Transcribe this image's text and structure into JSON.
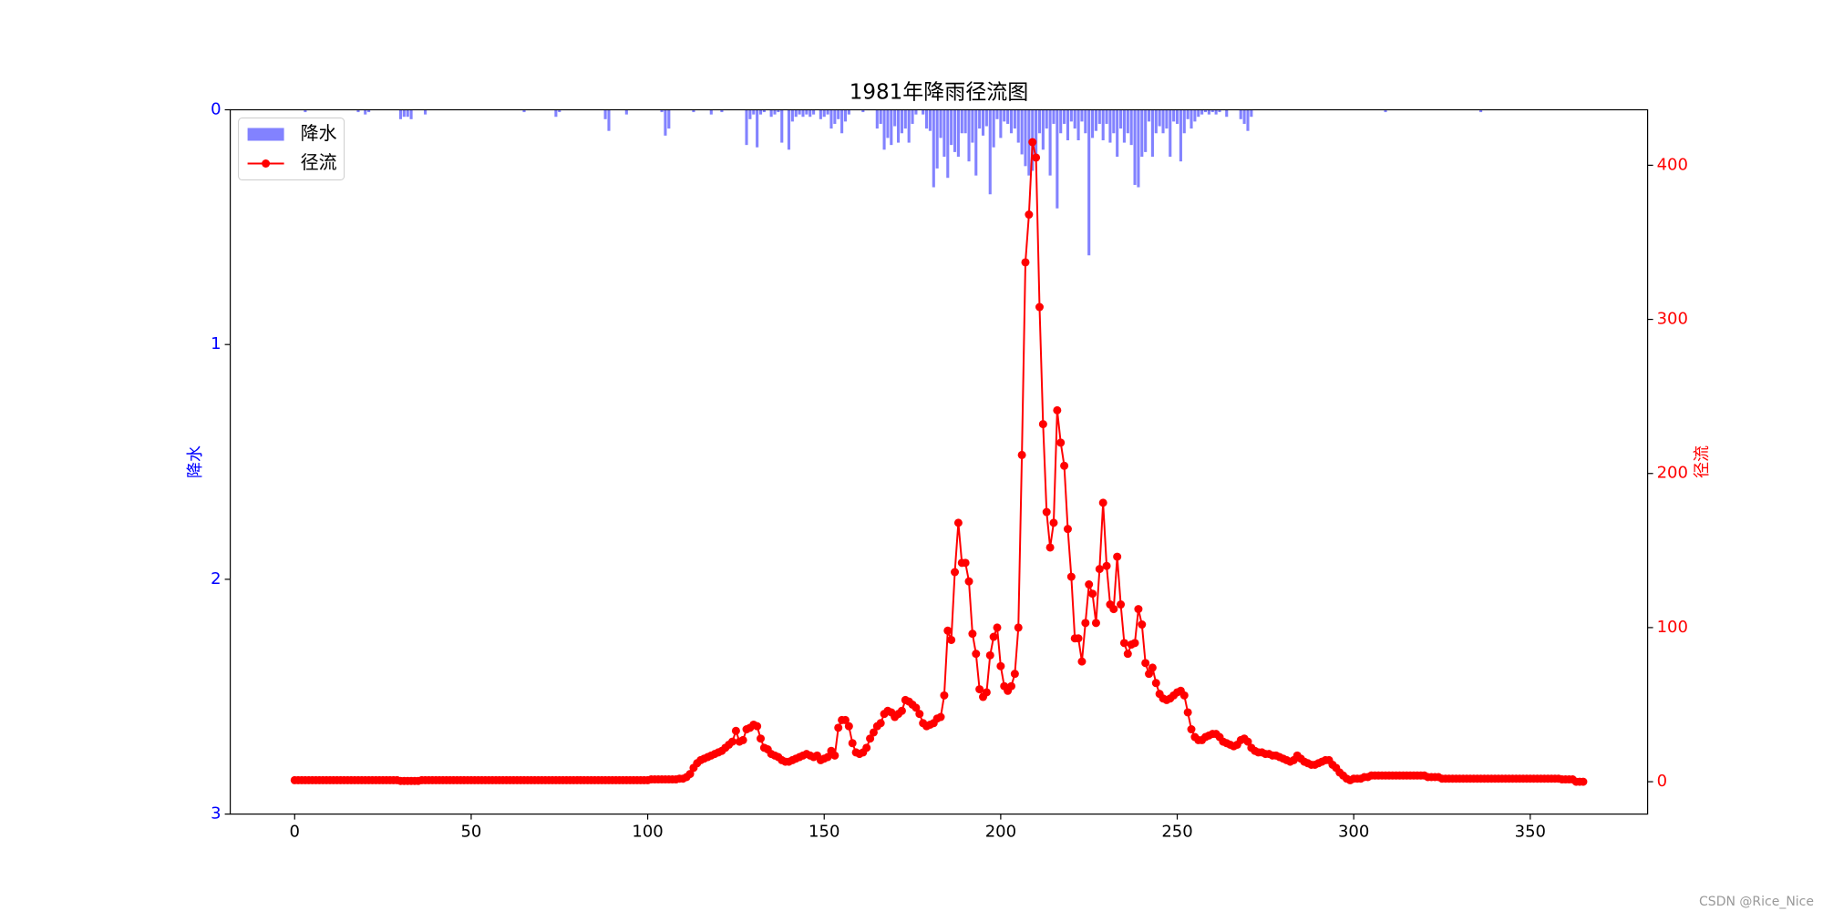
{
  "chart_data": {
    "type": "bar_line",
    "title": "1981年降雨径流图",
    "ylabel": "降水",
    "y2label": "径流",
    "watermark": "CSDN @Rice_Nice",
    "legend": "upper left",
    "xlim": [
      -18.25,
      383.25
    ],
    "xticks": [
      0,
      50,
      100,
      150,
      200,
      250,
      300,
      350
    ],
    "ylim": [
      3,
      0
    ],
    "yticks": [
      0,
      1,
      2,
      3
    ],
    "y2lim": [
      -21,
      436
    ],
    "y2ticks": [
      0,
      100,
      200,
      300,
      400
    ],
    "x": [
      0,
      1,
      2,
      3,
      4,
      5,
      6,
      7,
      8,
      9,
      10,
      11,
      12,
      13,
      14,
      15,
      16,
      17,
      18,
      19,
      20,
      21,
      22,
      23,
      24,
      25,
      26,
      27,
      28,
      29,
      30,
      31,
      32,
      33,
      34,
      35,
      36,
      37,
      38,
      39,
      40,
      41,
      42,
      43,
      44,
      45,
      46,
      47,
      48,
      49,
      50,
      51,
      52,
      53,
      54,
      55,
      56,
      57,
      58,
      59,
      60,
      61,
      62,
      63,
      64,
      65,
      66,
      67,
      68,
      69,
      70,
      71,
      72,
      73,
      74,
      75,
      76,
      77,
      78,
      79,
      80,
      81,
      82,
      83,
      84,
      85,
      86,
      87,
      88,
      89,
      90,
      91,
      92,
      93,
      94,
      95,
      96,
      97,
      98,
      99,
      100,
      101,
      102,
      103,
      104,
      105,
      106,
      107,
      108,
      109,
      110,
      111,
      112,
      113,
      114,
      115,
      116,
      117,
      118,
      119,
      120,
      121,
      122,
      123,
      124,
      125,
      126,
      127,
      128,
      129,
      130,
      131,
      132,
      133,
      134,
      135,
      136,
      137,
      138,
      139,
      140,
      141,
      142,
      143,
      144,
      145,
      146,
      147,
      148,
      149,
      150,
      151,
      152,
      153,
      154,
      155,
      156,
      157,
      158,
      159,
      160,
      161,
      162,
      163,
      164,
      165,
      166,
      167,
      168,
      169,
      170,
      171,
      172,
      173,
      174,
      175,
      176,
      177,
      178,
      179,
      180,
      181,
      182,
      183,
      184,
      185,
      186,
      187,
      188,
      189,
      190,
      191,
      192,
      193,
      194,
      195,
      196,
      197,
      198,
      199,
      200,
      201,
      202,
      203,
      204,
      205,
      206,
      207,
      208,
      209,
      210,
      211,
      212,
      213,
      214,
      215,
      216,
      217,
      218,
      219,
      220,
      221,
      222,
      223,
      224,
      225,
      226,
      227,
      228,
      229,
      230,
      231,
      232,
      233,
      234,
      235,
      236,
      237,
      238,
      239,
      240,
      241,
      242,
      243,
      244,
      245,
      246,
      247,
      248,
      249,
      250,
      251,
      252,
      253,
      254,
      255,
      256,
      257,
      258,
      259,
      260,
      261,
      262,
      263,
      264,
      265,
      266,
      267,
      268,
      269,
      270,
      271,
      272,
      273,
      274,
      275,
      276,
      277,
      278,
      279,
      280,
      281,
      282,
      283,
      284,
      285,
      286,
      287,
      288,
      289,
      290,
      291,
      292,
      293,
      294,
      295,
      296,
      297,
      298,
      299,
      300,
      301,
      302,
      303,
      304,
      305,
      306,
      307,
      308,
      309,
      310,
      311,
      312,
      313,
      314,
      315,
      316,
      317,
      318,
      319,
      320,
      321,
      322,
      323,
      324,
      325,
      326,
      327,
      328,
      329,
      330,
      331,
      332,
      333,
      334,
      335,
      336,
      337,
      338,
      339,
      340,
      341,
      342,
      343,
      344,
      345,
      346,
      347,
      348,
      349,
      350,
      351,
      352,
      353,
      354,
      355,
      356,
      357,
      358,
      359,
      360,
      361,
      362,
      363,
      364,
      365
    ],
    "series": [
      {
        "name": "降水",
        "color": "#4d4dff",
        "axis": "y",
        "values": [
          0,
          0,
          0,
          0.01,
          0,
          0,
          0,
          0,
          0,
          0,
          0,
          0,
          0,
          0,
          0,
          0,
          0,
          0,
          0.01,
          0,
          0.02,
          0.01,
          0,
          0,
          0,
          0,
          0,
          0,
          0,
          0,
          0.04,
          0.03,
          0.03,
          0.04,
          0,
          0,
          0,
          0.02,
          0,
          0,
          0,
          0,
          0,
          0,
          0,
          0,
          0,
          0,
          0,
          0,
          0,
          0,
          0,
          0,
          0,
          0,
          0,
          0,
          0,
          0,
          0,
          0,
          0,
          0,
          0,
          0.01,
          0,
          0,
          0,
          0,
          0,
          0,
          0,
          0,
          0.03,
          0.01,
          0,
          0,
          0,
          0,
          0,
          0,
          0,
          0,
          0,
          0,
          0,
          0,
          0.04,
          0.09,
          0,
          0,
          0,
          0,
          0.02,
          0,
          0,
          0,
          0,
          0,
          0,
          0,
          0,
          0,
          0.01,
          0.11,
          0.08,
          0,
          0,
          0,
          0,
          0,
          0,
          0.01,
          0,
          0,
          0,
          0,
          0.02,
          0,
          0,
          0.01,
          0,
          0,
          0,
          0,
          0,
          0,
          0.15,
          0.04,
          0.02,
          0.16,
          0.02,
          0.01,
          0,
          0.03,
          0.02,
          0.01,
          0.14,
          0,
          0.17,
          0.05,
          0.03,
          0.02,
          0.03,
          0.02,
          0.03,
          0.02,
          0,
          0.04,
          0.03,
          0.02,
          0.08,
          0.06,
          0.04,
          0.1,
          0.05,
          0.02,
          0,
          0,
          0,
          0.01,
          0,
          0,
          0,
          0.08,
          0.06,
          0.17,
          0.12,
          0.15,
          0.07,
          0.14,
          0.1,
          0.08,
          0.14,
          0.06,
          0.02,
          0,
          0.02,
          0.08,
          0.09,
          0.33,
          0.25,
          0.12,
          0.2,
          0.29,
          0.15,
          0.18,
          0.2,
          0.1,
          0.1,
          0.22,
          0.14,
          0.28,
          0.08,
          0.11,
          0.07,
          0.36,
          0.16,
          0.04,
          0.12,
          0.05,
          0.06,
          0.1,
          0.08,
          0.14,
          0.19,
          0.24,
          0.28,
          0.26,
          0.2,
          0.1,
          0.17,
          0.08,
          0.28,
          0.06,
          0.42,
          0.1,
          0.06,
          0.13,
          0.05,
          0.08,
          0.13,
          0.05,
          0.1,
          0.62,
          0.12,
          0.09,
          0.06,
          0.13,
          0.06,
          0.14,
          0.1,
          0.2,
          0.08,
          0.14,
          0.1,
          0.15,
          0.32,
          0.33,
          0.2,
          0.18,
          0.05,
          0.2,
          0.1,
          0.07,
          0.1,
          0.08,
          0.2,
          0.05,
          0.06,
          0.22,
          0.1,
          0.04,
          0.08,
          0.05,
          0.03,
          0.02,
          0.01,
          0.02,
          0.01,
          0.02,
          0.01,
          0,
          0.03,
          0,
          0,
          0,
          0.04,
          0.06,
          0.09,
          0.03,
          0,
          0,
          0,
          0,
          0,
          0,
          0,
          0,
          0,
          0,
          0,
          0,
          0,
          0,
          0,
          0,
          0,
          0,
          0,
          0,
          0,
          0,
          0,
          0,
          0,
          0,
          0,
          0,
          0,
          0,
          0,
          0,
          0,
          0,
          0,
          0,
          0,
          0.01,
          0,
          0,
          0,
          0,
          0,
          0,
          0,
          0,
          0,
          0,
          0,
          0,
          0,
          0,
          0,
          0,
          0,
          0,
          0,
          0,
          0,
          0,
          0,
          0,
          0,
          0,
          0.01,
          0,
          0,
          0,
          0,
          0,
          0,
          0,
          0,
          0,
          0,
          0,
          0,
          0,
          0,
          0,
          0,
          0,
          0,
          0,
          0,
          0,
          0,
          0,
          0,
          0,
          0,
          0,
          0,
          0
        ]
      },
      {
        "name": "径流",
        "color": "#ff0000",
        "axis": "y2",
        "values": [
          1,
          1,
          1,
          1,
          1,
          1,
          1,
          1,
          1,
          1,
          1,
          1,
          1,
          1,
          1,
          1,
          1,
          1,
          1,
          1,
          1,
          1,
          1,
          1,
          1,
          1,
          1,
          1,
          1,
          1,
          0.5,
          0.5,
          0.5,
          0.5,
          0.5,
          0.5,
          1,
          1,
          1,
          1,
          1,
          1,
          1,
          1,
          1,
          1,
          1,
          1,
          1,
          1,
          1,
          1,
          1,
          1,
          1,
          1,
          1,
          1,
          1,
          1,
          1,
          1,
          1,
          1,
          1,
          1,
          1,
          1,
          1,
          1,
          1,
          1,
          1,
          1,
          1,
          1,
          1,
          1,
          1,
          1,
          1,
          1,
          1,
          1,
          1,
          1,
          1,
          1,
          1,
          1,
          1,
          1,
          1,
          1,
          1,
          1,
          1,
          1,
          1,
          1,
          1,
          1.5,
          1.5,
          1.5,
          1.5,
          1.5,
          1.5,
          1.5,
          1.5,
          2,
          2,
          3,
          5,
          9,
          12,
          14,
          15,
          16,
          17,
          18,
          19,
          20,
          22,
          24,
          26,
          33,
          26,
          27,
          34,
          35,
          37,
          36,
          28,
          22,
          21,
          18,
          17,
          16,
          14,
          13,
          13,
          14,
          15,
          16,
          17,
          18,
          17,
          16,
          17,
          14,
          15,
          16,
          20,
          17,
          35,
          40,
          40,
          36,
          25,
          19,
          18,
          19,
          22,
          28,
          32,
          36,
          38,
          44,
          46,
          45,
          42,
          44,
          46,
          53,
          52,
          50,
          48,
          44,
          38,
          36,
          37,
          38,
          41,
          42,
          56,
          98,
          92,
          136,
          168,
          142,
          142,
          130,
          96,
          83,
          60,
          55,
          58,
          82,
          94,
          100,
          75,
          62,
          59,
          62,
          70,
          100,
          212,
          337,
          368,
          415,
          405,
          308,
          232,
          175,
          152,
          168,
          241,
          220,
          205,
          164,
          133,
          93,
          93,
          78,
          103,
          128,
          122,
          103,
          138,
          181,
          140,
          115,
          112,
          146,
          115,
          90,
          83,
          89,
          90,
          112,
          102,
          77,
          70,
          74,
          64,
          57,
          54,
          53,
          54,
          56,
          58,
          59,
          56,
          45,
          34,
          29,
          27,
          27,
          29,
          30,
          31,
          31,
          29,
          26,
          25,
          24,
          23,
          24,
          27,
          28,
          26,
          22,
          20,
          19,
          19,
          18,
          18,
          17,
          17,
          16,
          15,
          14,
          13,
          14,
          17,
          15,
          13,
          12,
          11,
          11,
          12,
          13,
          14,
          14,
          11,
          9,
          6,
          4,
          2,
          1,
          2,
          2,
          2,
          3,
          3,
          4,
          4,
          4,
          4,
          4,
          4,
          4,
          4,
          4,
          4,
          4,
          4,
          4,
          4,
          4,
          4,
          3,
          3,
          3,
          3,
          2,
          2,
          2,
          2,
          2,
          2,
          2,
          2,
          2,
          2,
          2,
          2,
          2,
          2,
          2,
          2,
          2,
          2,
          2,
          2,
          2,
          2,
          2,
          2,
          2,
          2,
          2,
          2,
          2,
          2,
          2,
          2,
          2,
          2,
          1.5,
          1.5,
          1.5,
          1.5,
          0,
          0,
          0
        ]
      }
    ]
  }
}
